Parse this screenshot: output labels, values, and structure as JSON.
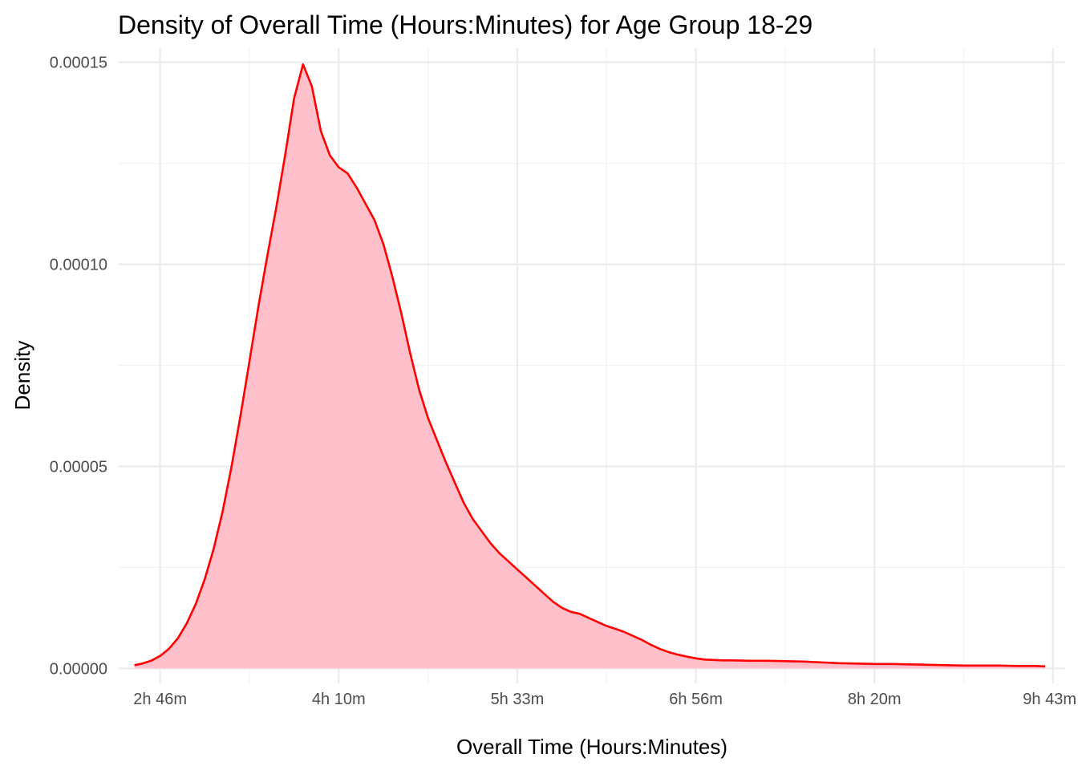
{
  "chart_data": {
    "type": "area",
    "title": "Density of Overall Time (Hours:Minutes) for Age Group 18-29",
    "xlabel": "Overall Time (Hours:Minutes)",
    "ylabel": "Density",
    "x_unit": "seconds",
    "xlim": [
      8840,
      35340
    ],
    "ylim": [
      -3.7e-06,
      0.0001535
    ],
    "x_ticks": [
      {
        "value": 10000,
        "label": "2h 46m"
      },
      {
        "value": 15000,
        "label": "4h 10m"
      },
      {
        "value": 20000,
        "label": "5h 33m"
      },
      {
        "value": 25000,
        "label": "6h 56m"
      },
      {
        "value": 30000,
        "label": "8h 20m"
      },
      {
        "value": 35000,
        "label": "9h 43m"
      }
    ],
    "x_minor_ticks": [
      7500,
      12500,
      17500,
      22500,
      27500,
      32500
    ],
    "y_ticks": [
      {
        "value": 0,
        "label": "0.00000"
      },
      {
        "value": 5e-05,
        "label": "0.00005"
      },
      {
        "value": 0.0001,
        "label": "0.00010"
      },
      {
        "value": 0.00015,
        "label": "0.00015"
      }
    ],
    "y_minor_ticks": [
      2.5e-05,
      7.5e-05,
      0.000125
    ],
    "grid": true,
    "colors": {
      "line": "#ff0000",
      "fill": "#ffc0cb"
    },
    "series": [
      {
        "x": [
          9280,
          9500,
          9750,
          10000,
          10250,
          10500,
          10750,
          11000,
          11250,
          11500,
          11750,
          12000,
          12250,
          12500,
          12750,
          13000,
          13250,
          13500,
          13750,
          14000,
          14250,
          14500,
          14750,
          15000,
          15250,
          15500,
          15750,
          16000,
          16250,
          16500,
          16750,
          17000,
          17250,
          17500,
          17750,
          18000,
          18250,
          18500,
          18750,
          19000,
          19250,
          19500,
          19750,
          20000,
          20250,
          20500,
          20750,
          21000,
          21250,
          21500,
          21750,
          22000,
          22250,
          22500,
          22750,
          23000,
          23250,
          23500,
          23750,
          24000,
          24250,
          24500,
          24750,
          25000,
          25250,
          25500,
          25750,
          26000,
          26500,
          27000,
          27500,
          28000,
          28500,
          29000,
          29500,
          30000,
          30500,
          31000,
          31500,
          32000,
          32500,
          33000,
          33500,
          34000,
          34500,
          34780
        ],
        "y": [
          8e-07,
          1.2e-06,
          1.9e-06,
          3.1e-06,
          4.9e-06,
          7.5e-06,
          1.12e-05,
          1.6e-05,
          2.21e-05,
          2.96e-05,
          3.89e-05,
          5e-05,
          6.25e-05,
          7.6e-05,
          8.95e-05,
          0.000102,
          0.000114,
          0.000127,
          0.000141,
          0.0001495,
          0.000144,
          0.000133,
          0.000127,
          0.000124,
          0.0001225,
          0.000119,
          0.000115,
          0.000111,
          0.000105,
          9.7e-05,
          8.8e-05,
          7.8e-05,
          6.9e-05,
          6.2e-05,
          5.65e-05,
          5.1e-05,
          4.6e-05,
          4.1e-05,
          3.7e-05,
          3.4e-05,
          3.1e-05,
          2.85e-05,
          2.65e-05,
          2.45e-05,
          2.25e-05,
          2.05e-05,
          1.85e-05,
          1.65e-05,
          1.5e-05,
          1.4e-05,
          1.35e-05,
          1.25e-05,
          1.15e-05,
          1.05e-05,
          9.8e-06,
          9e-06,
          8e-06,
          7e-06,
          5.8e-06,
          4.8e-06,
          4e-06,
          3.4e-06,
          2.9e-06,
          2.5e-06,
          2.2e-06,
          2.1e-06,
          2e-06,
          2e-06,
          1.9e-06,
          1.9e-06,
          1.8e-06,
          1.7e-06,
          1.5e-06,
          1.3e-06,
          1.2e-06,
          1.1e-06,
          1.1e-06,
          1e-06,
          9e-07,
          8e-07,
          7e-07,
          7e-07,
          7e-07,
          6e-07,
          6e-07,
          5e-07
        ]
      }
    ]
  }
}
